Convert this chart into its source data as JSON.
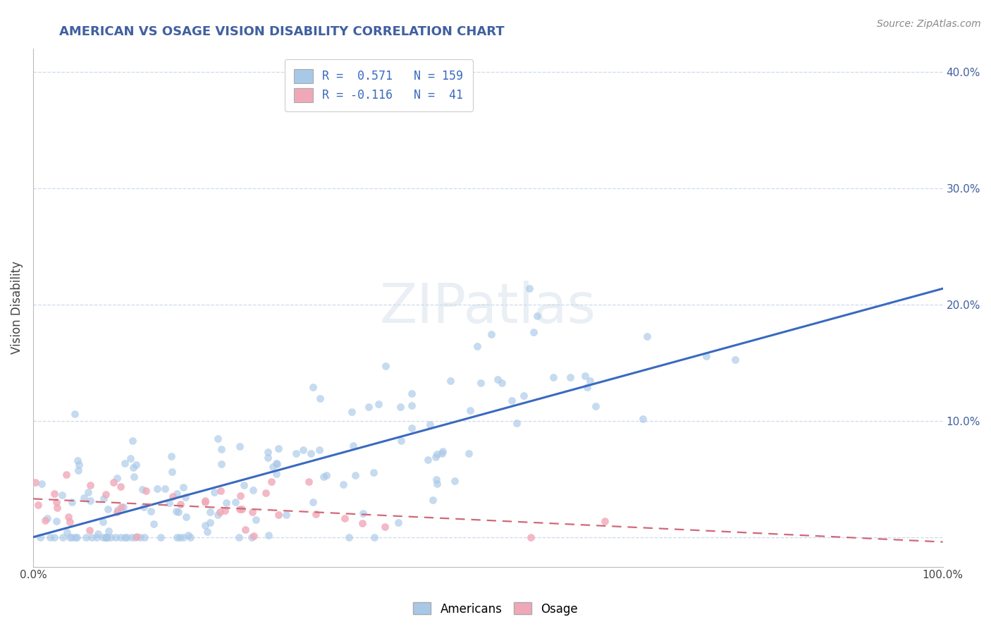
{
  "title": "AMERICAN VS OSAGE VISION DISABILITY CORRELATION CHART",
  "ylabel": "Vision Disability",
  "source": "Source: ZipAtlas.com",
  "xlim": [
    0.0,
    1.0
  ],
  "ylim": [
    -0.025,
    0.42
  ],
  "x_ticks": [
    0.0,
    0.1,
    0.2,
    0.3,
    0.4,
    0.5,
    0.6,
    0.7,
    0.8,
    0.9,
    1.0
  ],
  "x_tick_labels": [
    "0.0%",
    "",
    "",
    "",
    "",
    "",
    "",
    "",
    "",
    "",
    "100.0%"
  ],
  "y_ticks": [
    0.0,
    0.1,
    0.2,
    0.3,
    0.4
  ],
  "y_tick_labels": [
    "",
    "10.0%",
    "20.0%",
    "30.0%",
    "40.0%"
  ],
  "legend_r1": "R =  0.571",
  "legend_n1": "N = 159",
  "legend_r2": "R = -0.116",
  "legend_n2": "N =  41",
  "blue_color": "#a8c8e8",
  "pink_color": "#f0a8b8",
  "blue_line_color": "#3a6abf",
  "pink_line_color": "#d06878",
  "title_color": "#4060a0",
  "r1": 0.571,
  "n1": 159,
  "r2": -0.116,
  "n2": 41,
  "seed": 99
}
